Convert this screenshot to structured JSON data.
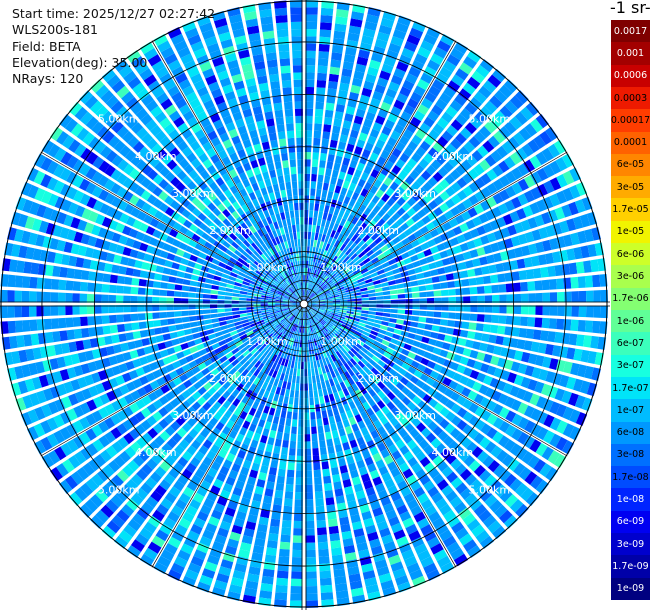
{
  "info": {
    "start_time": "Start time: 2025/12/27 02:27:42",
    "instrument": "WLS200s-181",
    "field": "Field: BETA",
    "elevation": "Elevation(deg): 35.00",
    "nrays": "NRays: 120"
  },
  "colorbar": {
    "title": "-1 sr-",
    "levels": [
      {
        "label": "0.0017",
        "color": "#7f0000"
      },
      {
        "label": "0.001",
        "color": "#a30000"
      },
      {
        "label": "0.0006",
        "color": "#c80000"
      },
      {
        "label": "0.0003",
        "color": "#ee1a00"
      },
      {
        "label": "0.00017",
        "color": "#ff3d00"
      },
      {
        "label": "0.0001",
        "color": "#ff6200"
      },
      {
        "label": "6e-05",
        "color": "#ff8600"
      },
      {
        "label": "3e-05",
        "color": "#ffab00"
      },
      {
        "label": "1.7e-05",
        "color": "#ffd000"
      },
      {
        "label": "1e-05",
        "color": "#f1f400"
      },
      {
        "label": "6e-06",
        "color": "#cdff29"
      },
      {
        "label": "3e-06",
        "color": "#a9ff4d"
      },
      {
        "label": "1.7e-06",
        "color": "#84ff72"
      },
      {
        "label": "1e-06",
        "color": "#60ff97"
      },
      {
        "label": "6e-07",
        "color": "#3bffbc"
      },
      {
        "label": "3e-07",
        "color": "#17ffe0"
      },
      {
        "label": "1.7e-07",
        "color": "#00e4f8"
      },
      {
        "label": "1e-07",
        "color": "#00bcff"
      },
      {
        "label": "6e-08",
        "color": "#0098ff"
      },
      {
        "label": "3e-08",
        "color": "#0070ff"
      },
      {
        "label": "1.7e-08",
        "color": "#004cff"
      },
      {
        "label": "1e-08",
        "color": "#0024ff"
      },
      {
        "label": "6e-09",
        "color": "#0000f1"
      },
      {
        "label": "3e-09",
        "color": "#0000cd"
      },
      {
        "label": "1.7e-09",
        "color": "#0000a8"
      },
      {
        "label": "1e-09",
        "color": "#000080"
      }
    ]
  },
  "chart_data": {
    "type": "heatmap",
    "projection": "polar-ppi",
    "field": "BETA",
    "nrays": 120,
    "ring_labels": [
      "1.00km",
      "2.00km",
      "3.00km",
      "4.00km",
      "5.00km"
    ],
    "ring_ranges_km": [
      1,
      2,
      3,
      4,
      5
    ],
    "max_range_km": 5.8,
    "dominant_level": "1e-07",
    "colors": {
      "background": "#ffffff",
      "rings": "#000000",
      "ray_gaps": "#ffffff"
    }
  }
}
